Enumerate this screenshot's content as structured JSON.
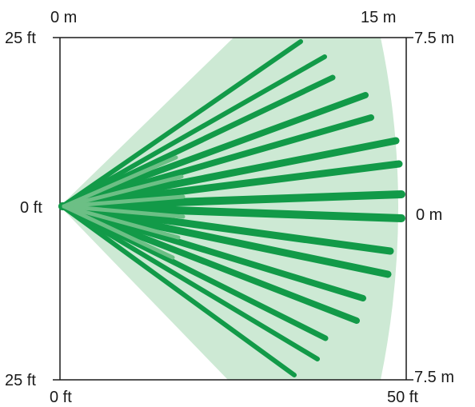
{
  "diagram": {
    "labels": {
      "top_left_m": "0 m",
      "top_right_m": "15 m",
      "left_top_ft": "25 ft",
      "left_mid_ft": "0 ft",
      "left_bottom_ft": "25 ft",
      "right_top_m": "7.5 m",
      "right_mid_m": "0 m",
      "right_bottom_m": "7.5 m",
      "bottom_left_ft": "0 ft",
      "bottom_right_ft": "50 ft"
    },
    "colors": {
      "coverage_fill": "#cde9d4",
      "long_beam": "#129a48",
      "short_beam": "#6cbf85",
      "axis": "#1a1a1a"
    }
  }
}
